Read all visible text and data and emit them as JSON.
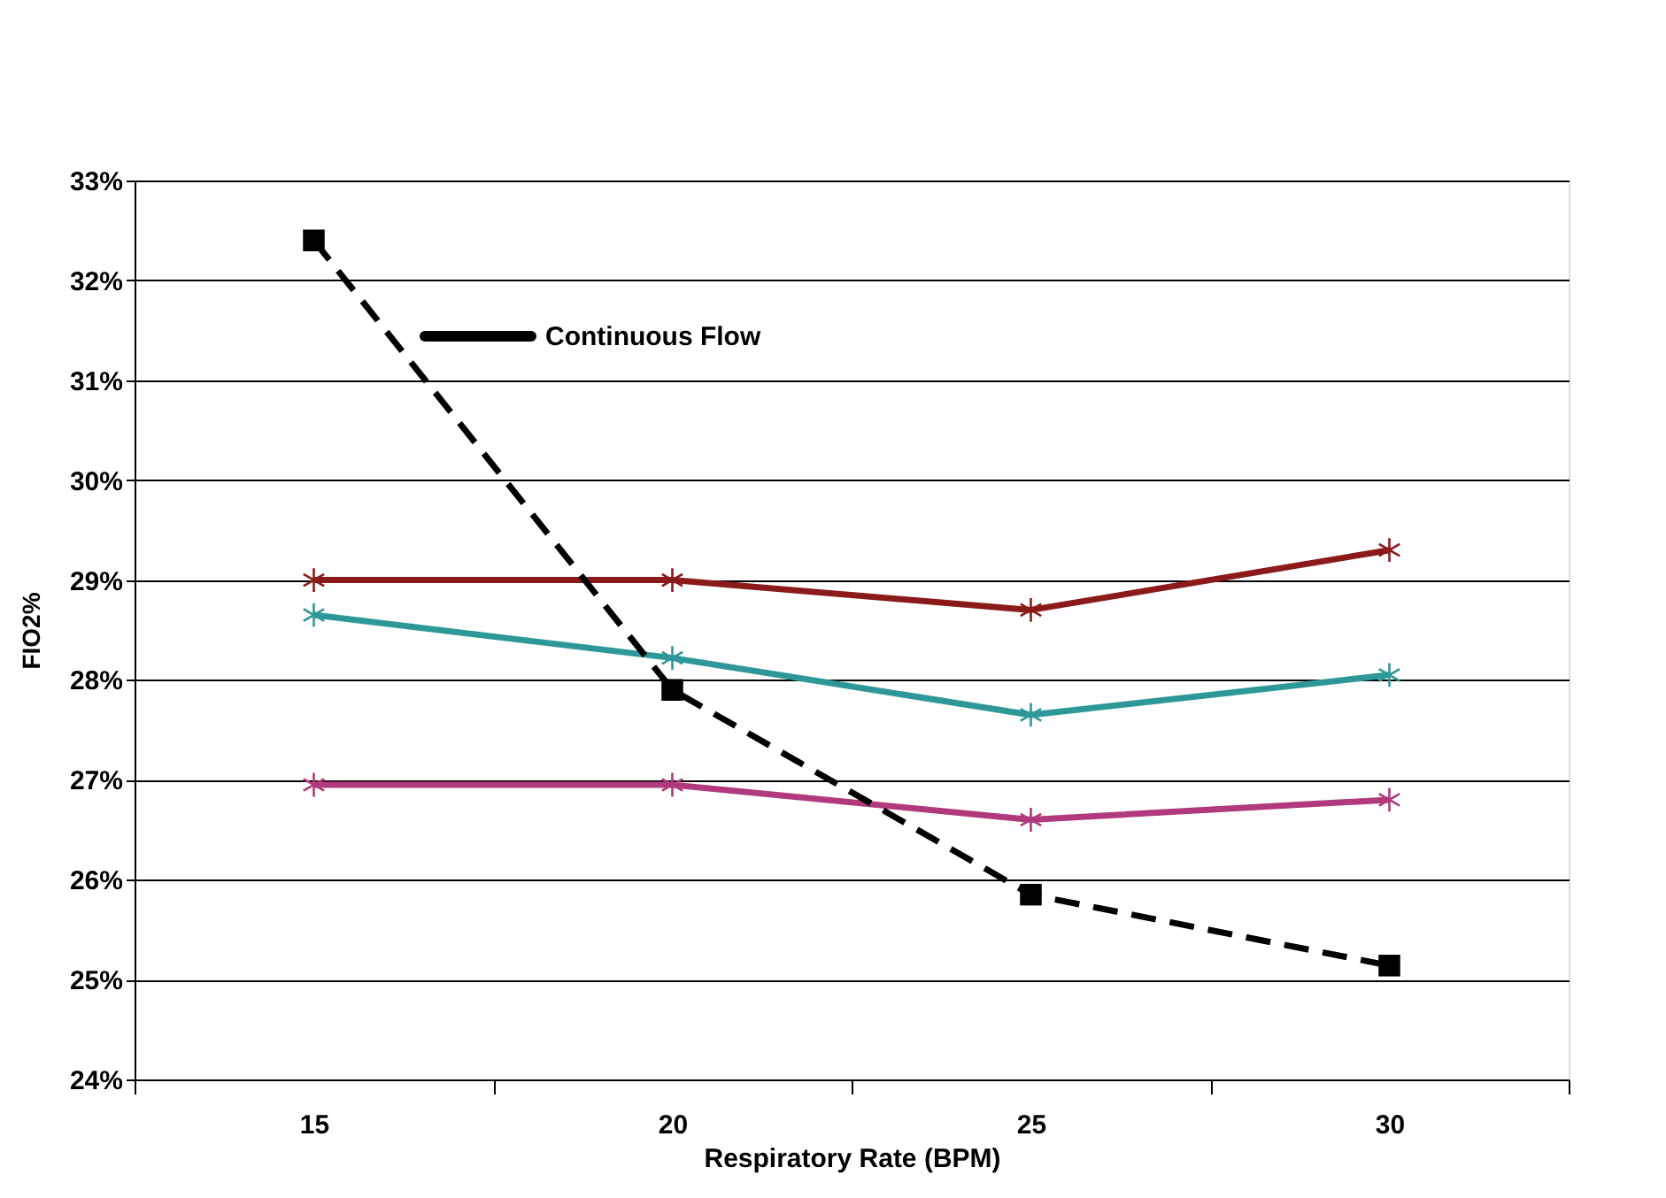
{
  "chart_data": {
    "type": "line",
    "xlabel": "Respiratory Rate (BPM)",
    "ylabel": "FIO2%",
    "categories": [
      "15",
      "20",
      "25",
      "30"
    ],
    "series": [
      {
        "color": "#8b1a1a",
        "marker": "cross",
        "line_style": "solid",
        "values": [
          29.0,
          29.0,
          28.7,
          29.3
        ]
      },
      {
        "color": "#2e9898",
        "marker": "cross",
        "line_style": "solid",
        "values": [
          28.65,
          28.22,
          27.65,
          28.05
        ]
      },
      {
        "color": "#b03a7c",
        "marker": "cross",
        "line_style": "solid",
        "values": [
          26.95,
          26.95,
          26.6,
          26.8
        ]
      },
      {
        "color": "#000000",
        "marker": "square",
        "line_style": "dashed",
        "values": [
          32.4,
          27.9,
          25.85,
          25.14
        ]
      }
    ],
    "ylim": [
      24,
      33
    ],
    "yticks": [
      {
        "value": 24,
        "label": "24%"
      },
      {
        "value": 25,
        "label": "25%"
      },
      {
        "value": 26,
        "label": "26%"
      },
      {
        "value": 27,
        "label": "27%"
      },
      {
        "value": 28,
        "label": "28%"
      },
      {
        "value": 29,
        "label": "29%"
      },
      {
        "value": 30,
        "label": "30%"
      },
      {
        "value": 31,
        "label": "31%"
      },
      {
        "value": 32,
        "label": "32%"
      },
      {
        "value": 33,
        "label": "33%"
      }
    ],
    "grid": "y",
    "annotations": [
      "Continuous Flow"
    ]
  }
}
